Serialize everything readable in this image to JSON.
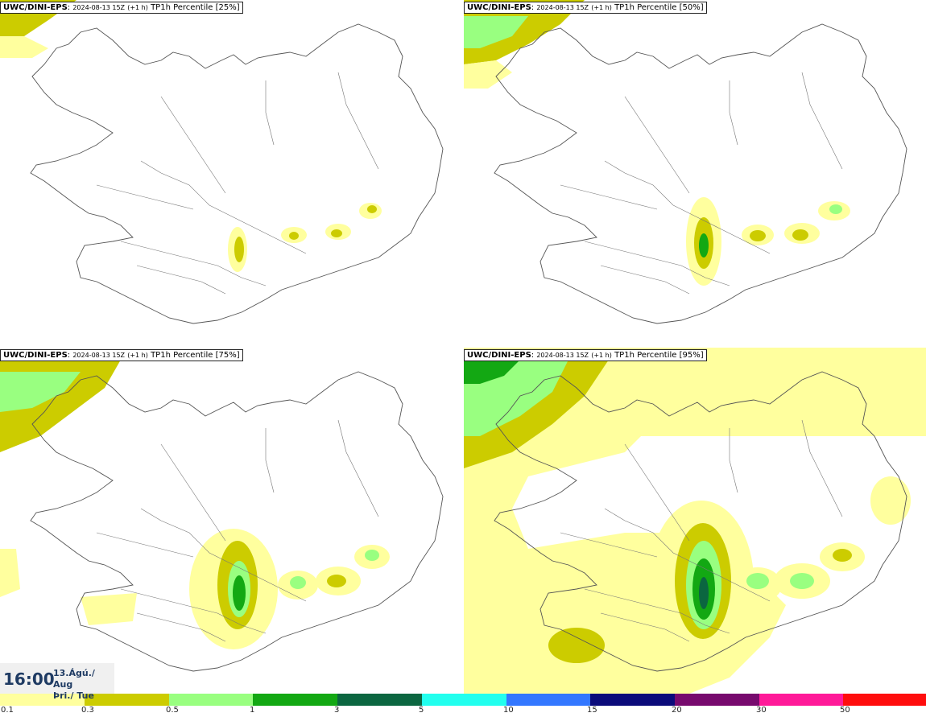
{
  "panels": [
    {
      "source": "UWC/DINI-EPS",
      "timestamp": "2024-08-13 15Z",
      "lead": "(+1 h)",
      "product": "TP1h Percentile [25%]"
    },
    {
      "source": "UWC/DINI-EPS",
      "timestamp": "2024-08-13 15Z",
      "lead": "(+1 h)",
      "product": "TP1h Percentile [50%]"
    },
    {
      "source": "UWC/DINI-EPS",
      "timestamp": "2024-08-13 15Z",
      "lead": "(+1 h)",
      "product": "TP1h Percentile [75%]"
    },
    {
      "source": "UWC/DINI-EPS",
      "timestamp": "2024-08-13 15Z",
      "lead": "(+1 h)",
      "product": "TP1h Percentile [95%]"
    }
  ],
  "time": {
    "clock": "16:00",
    "date": "13.Ágú./ Aug",
    "weekday": "Þri./ Tue"
  },
  "legend": {
    "labels": [
      "0.1",
      "0.3",
      "0.5",
      "1",
      "3",
      "5",
      "10",
      "15",
      "20",
      "30",
      "50"
    ],
    "colors": [
      "#ffff9e",
      "#cccc00",
      "#99ff80",
      "#13a813",
      "#0b6640",
      "#22ffee",
      "#3377ff",
      "#0b0b7a",
      "#770a6e",
      "#ff1a99",
      "#ff0d0d"
    ]
  }
}
